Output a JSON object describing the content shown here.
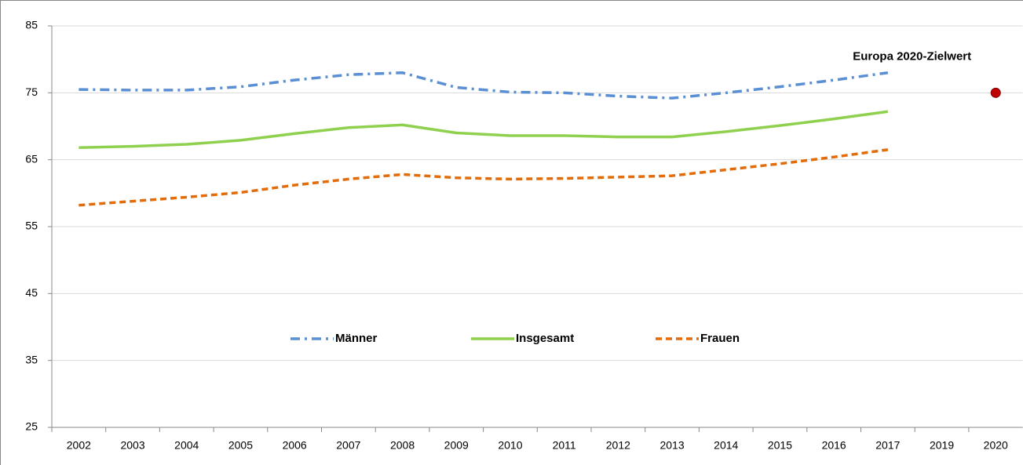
{
  "chart_data": {
    "type": "line",
    "categories": [
      "2002",
      "2003",
      "2004",
      "2005",
      "2006",
      "2007",
      "2008",
      "2009",
      "2010",
      "2011",
      "2012",
      "2013",
      "2014",
      "2015",
      "2016",
      "2017",
      "2019",
      "2020"
    ],
    "series": [
      {
        "name": "Männer",
        "color": "#5b8fd4",
        "dash": "12 6 3 6",
        "values": [
          75.5,
          75.4,
          75.4,
          75.9,
          76.9,
          77.7,
          78.0,
          75.8,
          75.1,
          75.0,
          74.5,
          74.2,
          75.0,
          75.9,
          76.9,
          78.0,
          null,
          null
        ]
      },
      {
        "name": "Insgesamt",
        "color": "#8fd14f",
        "dash": "none",
        "values": [
          66.8,
          67.0,
          67.3,
          67.9,
          68.9,
          69.8,
          70.2,
          69.0,
          68.6,
          68.6,
          68.4,
          68.4,
          69.2,
          70.1,
          71.1,
          72.2,
          null,
          null
        ]
      },
      {
        "name": "Frauen",
        "color": "#e36c0a",
        "dash": "8 5",
        "values": [
          58.2,
          58.8,
          59.4,
          60.1,
          61.2,
          62.1,
          62.8,
          62.3,
          62.1,
          62.2,
          62.4,
          62.6,
          63.5,
          64.4,
          65.4,
          66.5,
          null,
          null
        ]
      },
      {
        "name": "Europa 2020-Zielwert",
        "color": "#c00000",
        "marker": true,
        "show_in_legend": false,
        "values": [
          null,
          null,
          null,
          null,
          null,
          null,
          null,
          null,
          null,
          null,
          null,
          null,
          null,
          null,
          null,
          null,
          null,
          75
        ]
      }
    ],
    "ylim": [
      25,
      85
    ],
    "yticks": [
      25,
      35,
      45,
      55,
      65,
      75,
      85
    ],
    "grid": true
  }
}
